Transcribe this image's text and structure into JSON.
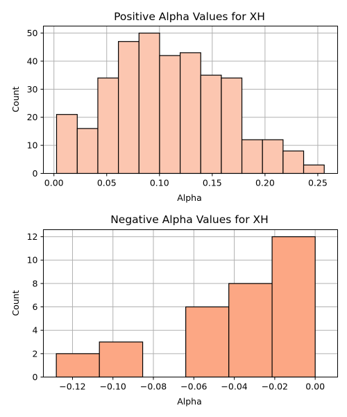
{
  "chart_data": [
    {
      "type": "bar",
      "title": "Positive Alpha Values for XH",
      "xlabel": "Alpha",
      "ylabel": "Count",
      "bin_edges": [
        0.0025,
        0.0221,
        0.0416,
        0.0611,
        0.0806,
        0.1001,
        0.1196,
        0.1391,
        0.1586,
        0.1781,
        0.1976,
        0.2171,
        0.2366,
        0.2561
      ],
      "values": [
        21,
        16,
        34,
        47,
        50,
        42,
        43,
        35,
        34,
        12,
        12,
        8,
        3
      ],
      "xlim": [
        -0.01,
        0.2688
      ],
      "ylim": [
        0,
        52.5
      ],
      "xticks": [
        0.0,
        0.05,
        0.1,
        0.15,
        0.2,
        0.25
      ],
      "xtick_labels": [
        "0.00",
        "0.05",
        "0.10",
        "0.15",
        "0.20",
        "0.25"
      ],
      "yticks": [
        0,
        10,
        20,
        30,
        40,
        50
      ],
      "ytick_labels": [
        "0",
        "10",
        "20",
        "30",
        "40",
        "50"
      ],
      "color": "#fcc6b0",
      "grid": true
    },
    {
      "type": "bar",
      "title": "Negative Alpha Values for XH",
      "xlabel": "Alpha",
      "ylabel": "Count",
      "bin_edges": [
        -0.128,
        -0.1067,
        -0.0853,
        -0.064,
        -0.0427,
        -0.0213,
        0.0
      ],
      "values": [
        2,
        3,
        0,
        6,
        8,
        12
      ],
      "xlim": [
        -0.1344,
        0.0111
      ],
      "ylim": [
        0,
        12.6
      ],
      "xticks": [
        -0.12,
        -0.1,
        -0.08,
        -0.06,
        -0.04,
        -0.02,
        0.0
      ],
      "xtick_labels": [
        "−0.12",
        "−0.10",
        "−0.08",
        "−0.06",
        "−0.04",
        "−0.02",
        "0.00"
      ],
      "yticks": [
        0,
        2,
        4,
        6,
        8,
        10,
        12
      ],
      "ytick_labels": [
        "0",
        "2",
        "4",
        "6",
        "8",
        "10",
        "12"
      ],
      "color": "#fca784",
      "grid": true
    }
  ]
}
